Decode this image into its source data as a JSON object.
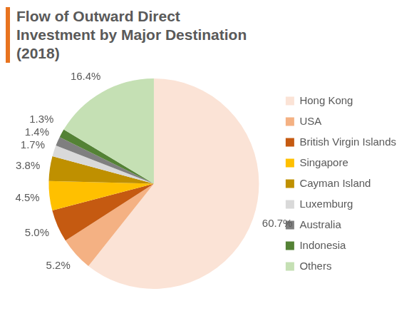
{
  "chart_data": {
    "type": "pie",
    "title": "Flow of Outward Direct Investment by Major Destination (2018)",
    "categories": [
      "Hong Kong",
      "USA",
      "British Virgin Islands",
      "Singapore",
      "Cayman Island",
      "Luxemburg",
      "Australia",
      "Indonesia",
      "Others"
    ],
    "values": [
      60.7,
      5.2,
      5.0,
      4.5,
      3.8,
      1.7,
      1.4,
      1.3,
      16.4
    ],
    "value_labels": [
      "60.7%",
      "5.2%",
      "5.0%",
      "4.5%",
      "3.8%",
      "1.7%",
      "1.4%",
      "1.3%",
      "16.4%"
    ],
    "colors": [
      "#fbe3d6",
      "#f4b183",
      "#c55a11",
      "#ffc000",
      "#bf9000",
      "#d9d9d9",
      "#7f7f7f",
      "#548235",
      "#c5e0b4"
    ],
    "legend": "right",
    "data_labels": true
  }
}
